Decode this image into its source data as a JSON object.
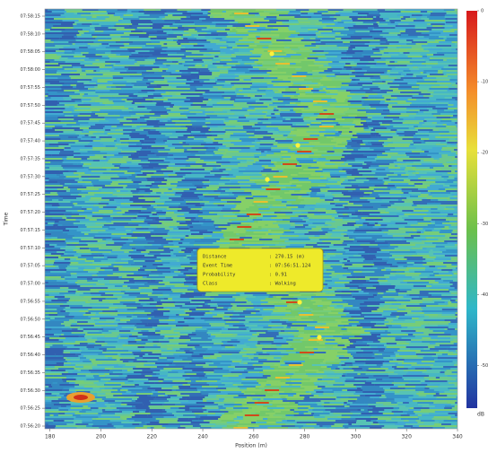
{
  "chart_data": {
    "type": "heatmap",
    "x_label": "Position (m)",
    "y_label": "Time",
    "xlim": [
      178,
      340
    ],
    "xticks": [
      180,
      200,
      220,
      240,
      260,
      280,
      300,
      320,
      340
    ],
    "y_categories": [
      "07:58:15",
      "07:58:10",
      "07:58:05",
      "07:58:00",
      "07:57:55",
      "07:57:50",
      "07:57:45",
      "07:57:40",
      "07:57:35",
      "07:57:30",
      "07:57:25",
      "07:57:20",
      "07:57:15",
      "07:57:10",
      "07:57:05",
      "07:57:00",
      "07:56:55",
      "07:56:50",
      "07:56:45",
      "07:56:40",
      "07:56:35",
      "07:56:30",
      "07:56:25",
      "07:56:20"
    ],
    "colorbar": {
      "lim": [
        -56,
        0
      ],
      "ticks": [
        0,
        -10,
        -20,
        -30,
        -40,
        -50
      ],
      "unit": "dB"
    },
    "annotation": {
      "rows": [
        [
          "Distance",
          ": 270.15 (m)"
        ],
        [
          "Event Time",
          ": 07:56:51.124"
        ],
        [
          "Probability",
          ": 0.91"
        ],
        [
          "Class",
          ": Walking"
        ]
      ]
    }
  }
}
